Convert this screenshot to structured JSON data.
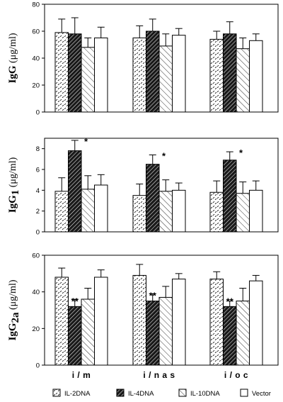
{
  "chart_data": [
    {
      "type": "bar",
      "ylabel_main": "IgG",
      "ylabel_sub": "",
      "ylabel_unit": "(μg/ml)",
      "ylim": [
        0,
        80
      ],
      "yticks": [
        0,
        20,
        40,
        60,
        80
      ],
      "categories": [
        "i/m",
        "i/nas",
        "i/oc"
      ],
      "series": [
        {
          "name": "IL-2DNA",
          "values": [
            59,
            55,
            54
          ],
          "errors": [
            10,
            9,
            6
          ]
        },
        {
          "name": "IL-4DNA",
          "values": [
            58,
            60,
            58
          ],
          "errors": [
            12,
            9,
            9
          ]
        },
        {
          "name": "IL-10DNA",
          "values": [
            48,
            49,
            47
          ],
          "errors": [
            7,
            9,
            8
          ]
        },
        {
          "name": "Vector",
          "values": [
            55,
            57,
            53
          ],
          "errors": [
            8,
            5,
            5
          ]
        }
      ],
      "annotations": [
        [],
        [],
        []
      ]
    },
    {
      "type": "bar",
      "ylabel_main": "IgG",
      "ylabel_sub": "1",
      "ylabel_unit": "(μg/ml)",
      "ylim": [
        0,
        9
      ],
      "yticks": [
        0,
        2,
        4,
        6,
        8
      ],
      "categories": [
        "i/m",
        "i/nas",
        "i/oc"
      ],
      "series": [
        {
          "name": "IL-2DNA",
          "values": [
            3.9,
            3.5,
            3.8
          ],
          "errors": [
            1.3,
            1.1,
            1.1
          ]
        },
        {
          "name": "IL-4DNA",
          "values": [
            7.8,
            6.5,
            6.9
          ],
          "errors": [
            1.0,
            0.9,
            0.8
          ]
        },
        {
          "name": "IL-10DNA",
          "values": [
            4.1,
            3.9,
            3.7
          ],
          "errors": [
            1.3,
            1.1,
            1.1
          ]
        },
        {
          "name": "Vector",
          "values": [
            4.5,
            4.0,
            4.0
          ],
          "errors": [
            1.0,
            0.7,
            0.9
          ]
        }
      ],
      "annotations": [
        [
          "",
          "*",
          "",
          ""
        ],
        [
          "",
          "*",
          "",
          ""
        ],
        [
          "",
          "*",
          "",
          ""
        ]
      ]
    },
    {
      "type": "bar",
      "ylabel_main": "IgG",
      "ylabel_sub": "2a",
      "ylabel_unit": "(μg/ml)",
      "ylim": [
        0,
        60
      ],
      "yticks": [
        0,
        20,
        40,
        60
      ],
      "categories": [
        "i/m",
        "i/nas",
        "i/oc"
      ],
      "series": [
        {
          "name": "IL-2DNA",
          "values": [
            48,
            49,
            47
          ],
          "errors": [
            5,
            6,
            4
          ]
        },
        {
          "name": "IL-4DNA",
          "values": [
            32,
            35,
            32
          ],
          "errors": [
            4,
            4,
            3
          ]
        },
        {
          "name": "IL-10DNA",
          "values": [
            36,
            37,
            35
          ],
          "errors": [
            6,
            6,
            7
          ]
        },
        {
          "name": "Vector",
          "values": [
            48,
            47,
            46
          ],
          "errors": [
            4,
            3,
            3
          ]
        }
      ],
      "annotations": [
        [
          "",
          "**",
          "#",
          ""
        ],
        [
          "",
          "**",
          "#",
          ""
        ],
        [
          "",
          "**",
          "#",
          ""
        ]
      ]
    }
  ],
  "legend": [
    {
      "label": "IL-2DNA",
      "pattern": "dashes"
    },
    {
      "label": "IL-4DNA",
      "pattern": "dark-hatch"
    },
    {
      "label": "IL-10DNA",
      "pattern": "light-hatch"
    },
    {
      "label": "Vector",
      "pattern": "white"
    }
  ],
  "x_category_labels": [
    "i / m",
    "i / n a s",
    "i / o c"
  ]
}
